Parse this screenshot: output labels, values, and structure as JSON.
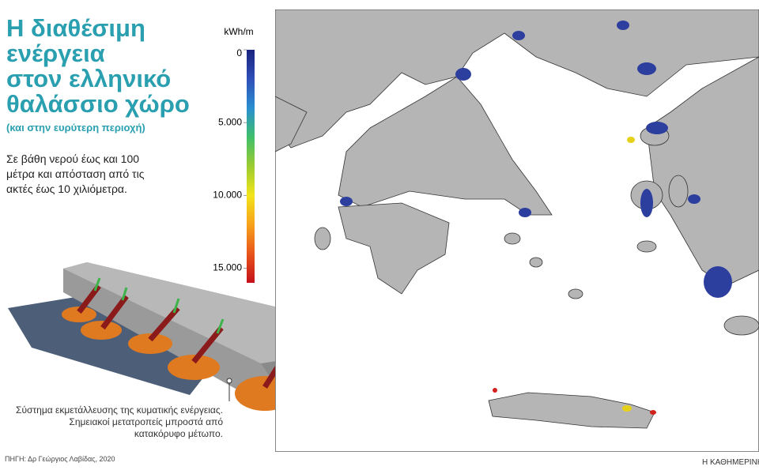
{
  "header": {
    "title_lines": [
      "Η διαθέσιμη",
      "ενέργεια",
      "στον ελληνικό",
      "θαλάσσιο χώρο"
    ],
    "subtitle": "(και στην ευρύτερη περιοχή)",
    "description": "Σε βάθη νερού έως και 100 μέτρα και απόσταση από τις ακτές έως 10 χιλιόμετρα."
  },
  "colorbar": {
    "unit": "kWh/m",
    "lim": [
      0,
      16000
    ],
    "ticks": [
      0,
      {
        "value": 5000,
        "label": "5.000"
      },
      {
        "value": 10000,
        "label": "10.000"
      },
      {
        "value": 15000,
        "label": "15.000"
      }
    ],
    "colors": [
      "#1a237e",
      "#2e4fb8",
      "#2a8fd0",
      "#3fbf6a",
      "#9ccc30",
      "#f2e51a",
      "#f7a21a",
      "#e8541a",
      "#c4101a"
    ]
  },
  "illustration": {
    "caption": "Σύστημα εκμετάλλευσης της κυματικής ενέργειας. Σημειακοί μετατροπείς μπροστά από κατακόρυφο μέτωπο."
  },
  "footer": {
    "source": "ΠΗΓΗ: Δρ Γεώργιος Λαβίδας, 2020",
    "brand": "Η ΚΑΘΗΜΕΡΙΝΗ"
  }
}
